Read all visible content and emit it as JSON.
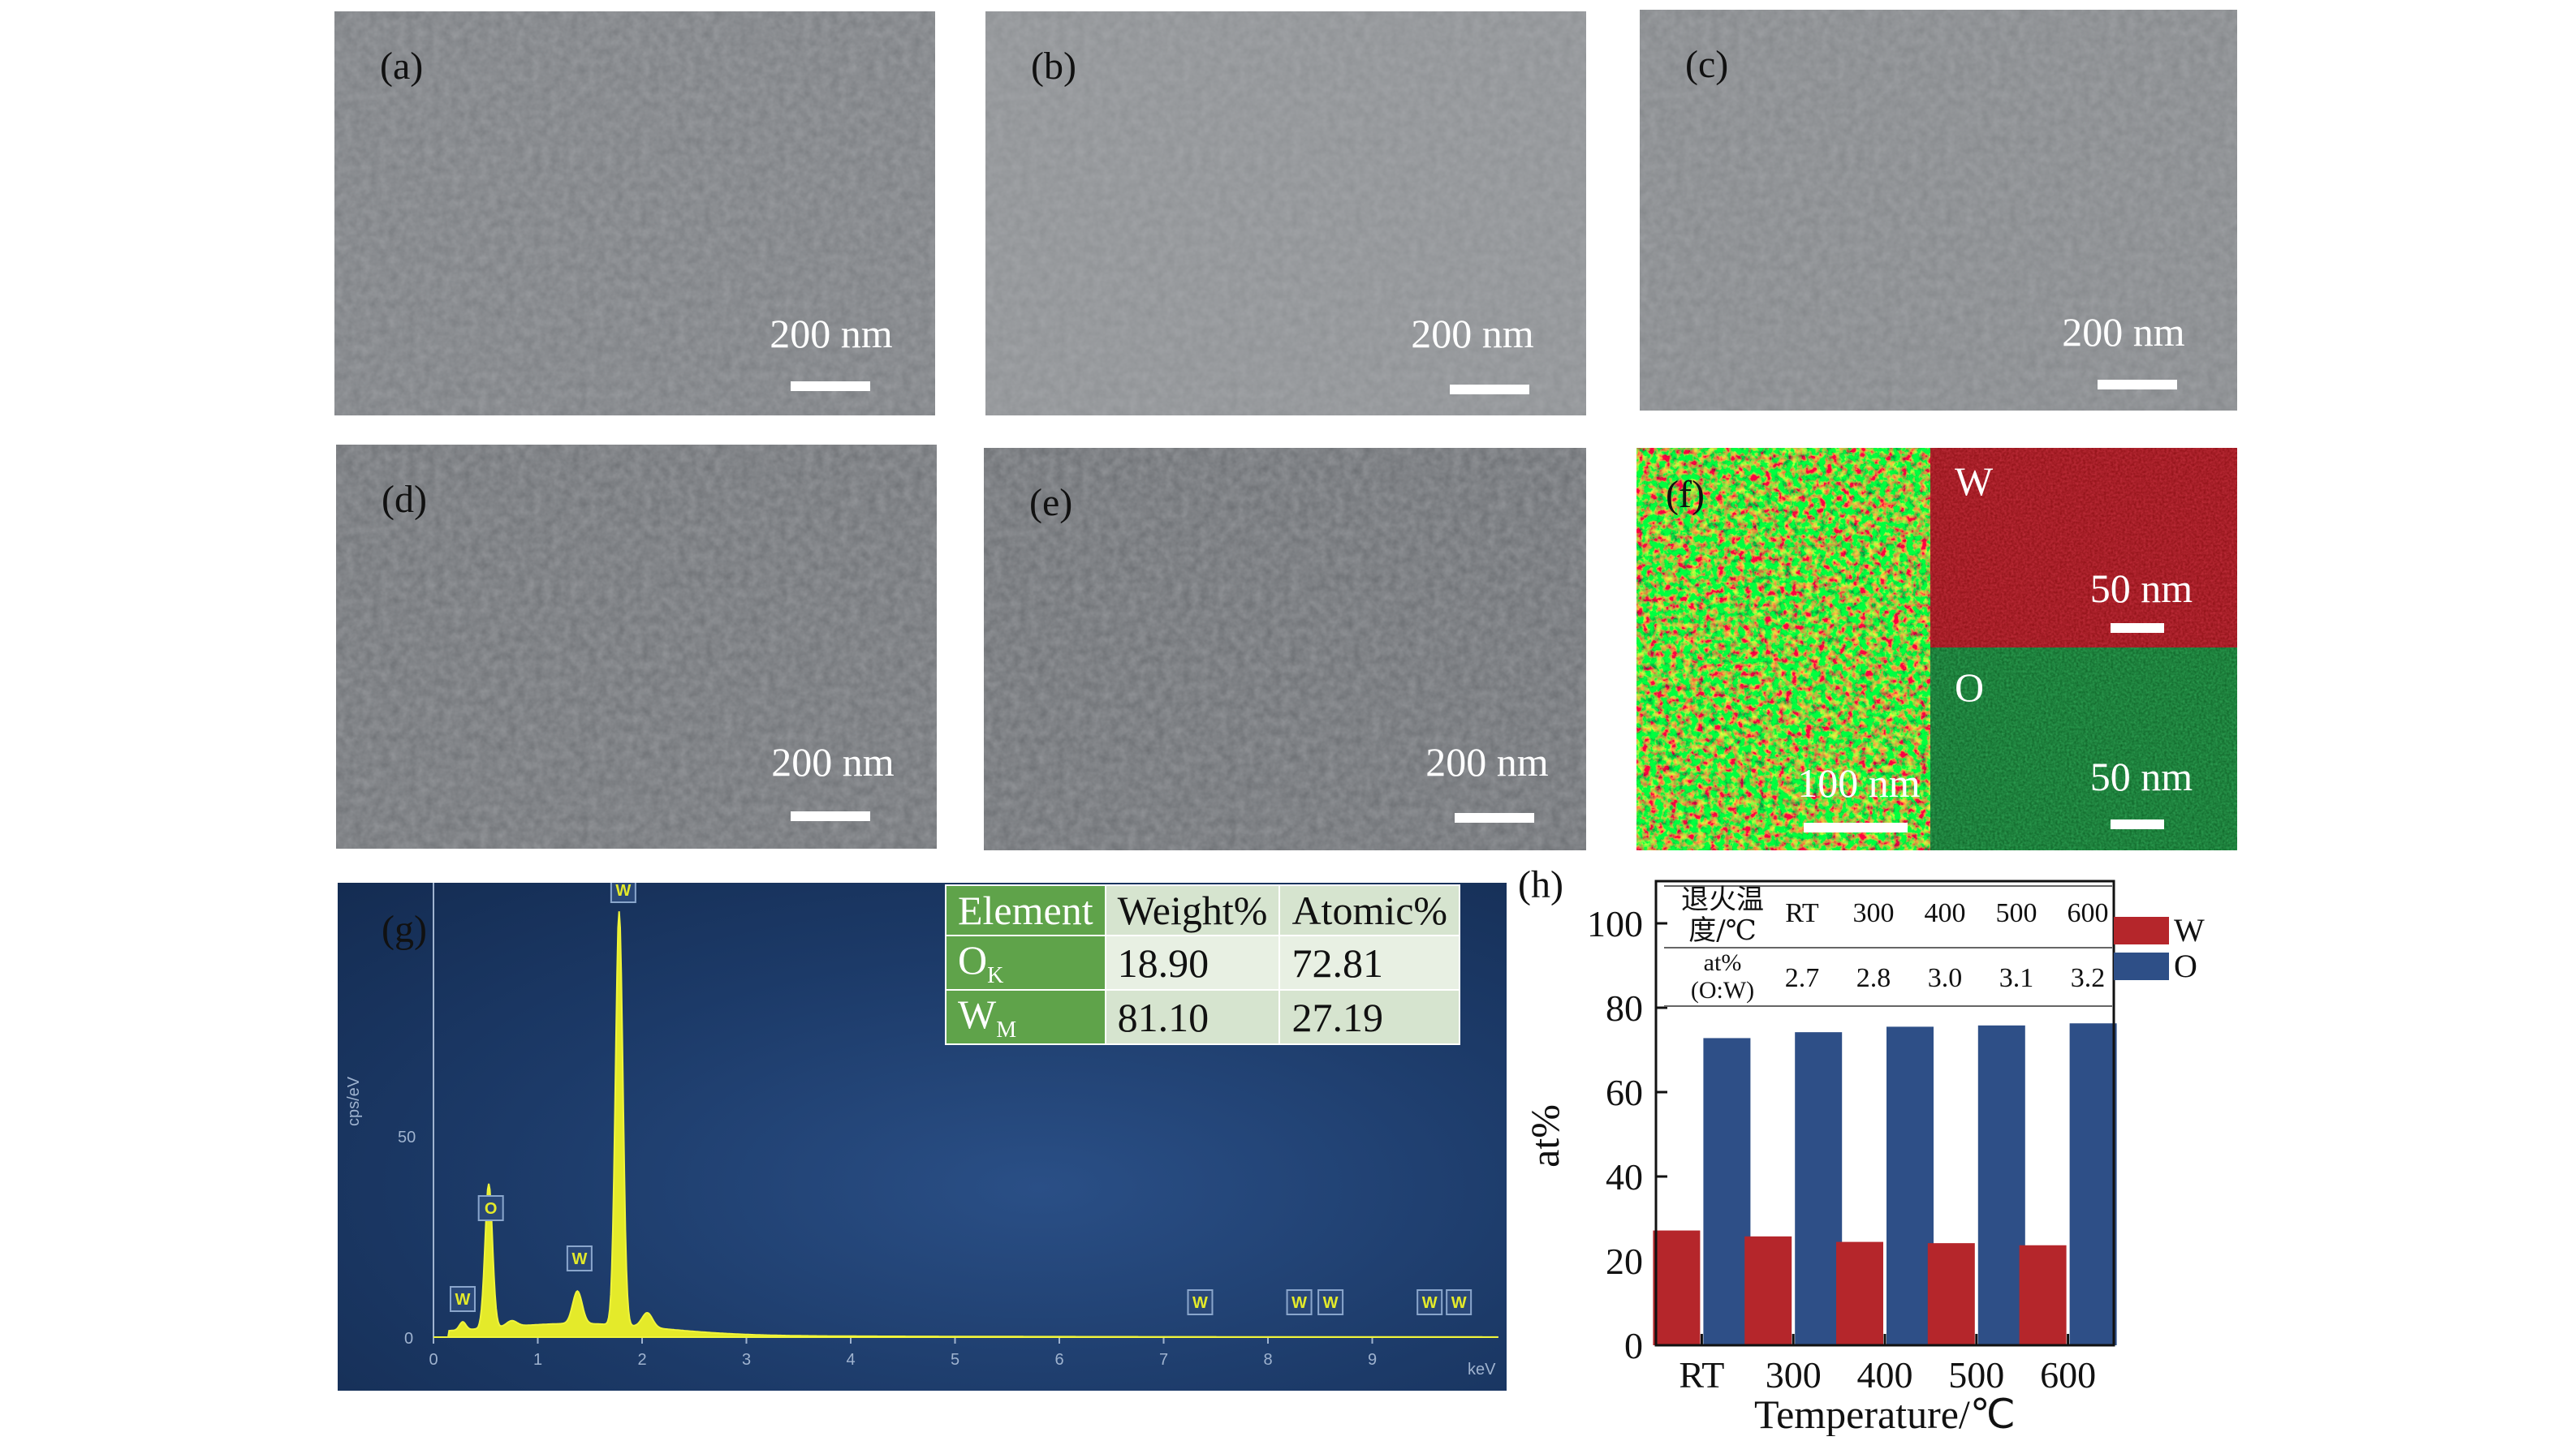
{
  "panels": {
    "a": {
      "label": "(a)",
      "scale": "200 nm"
    },
    "b": {
      "label": "(b)",
      "scale": "200 nm"
    },
    "c": {
      "label": "(c)",
      "scale": "200 nm"
    },
    "d": {
      "label": "(d)",
      "scale": "200 nm"
    },
    "e": {
      "label": "(e)",
      "scale": "200 nm"
    },
    "f": {
      "label": "(f)",
      "w_label": "W",
      "o_label": "O",
      "scale_main": "100 nm",
      "scale_w": "50 nm",
      "scale_o": "50 nm"
    }
  },
  "edx": {
    "label": "(g)",
    "y_axis_label": "cps/eV",
    "y_tick_50": "50",
    "y_tick_0": "0",
    "x_unit": "keV",
    "x_ticks": [
      "0",
      "1",
      "2",
      "3",
      "4",
      "5",
      "6",
      "7",
      "8",
      "9"
    ],
    "peak_tags": [
      "W",
      "O",
      "W",
      "W",
      "W",
      "W",
      "W",
      "W",
      "W"
    ],
    "table": {
      "headers": [
        "Element",
        "Weight%",
        "Atomic%"
      ],
      "rows": [
        {
          "el": "O",
          "sub": "K",
          "weight": "18.90",
          "atomic": "72.81"
        },
        {
          "el": "W",
          "sub": "M",
          "weight": "81.10",
          "atomic": "27.19"
        }
      ]
    },
    "colors": {
      "background": "#1f3d6e",
      "spectrum": "#e4ea2a",
      "table_header": "#5fa34a"
    }
  },
  "chart_data": {
    "type": "bar",
    "panel_label": "(h)",
    "categories": [
      "RT",
      "300",
      "400",
      "500",
      "600"
    ],
    "series": [
      {
        "name": "W",
        "values": [
          27.2,
          25.8,
          24.5,
          24.2,
          23.7
        ],
        "color": "#b5262b"
      },
      {
        "name": "O",
        "values": [
          72.8,
          74.2,
          75.5,
          75.8,
          76.3
        ],
        "color": "#2e4f87"
      }
    ],
    "xlabel": "Temperature/℃",
    "ylabel": "at%",
    "ylim": [
      0,
      110
    ],
    "yticks": [
      "0",
      "20",
      "40",
      "60",
      "80",
      "100"
    ],
    "legend": "top-right",
    "inset_table": {
      "row1_label": [
        "退火温",
        "度/℃"
      ],
      "row1_values": [
        "RT",
        "300",
        "400",
        "500",
        "600"
      ],
      "row2_label": [
        "at%",
        "(O:W)"
      ],
      "row2_values": [
        "2.7",
        "2.8",
        "3.0",
        "3.1",
        "3.2"
      ]
    }
  }
}
